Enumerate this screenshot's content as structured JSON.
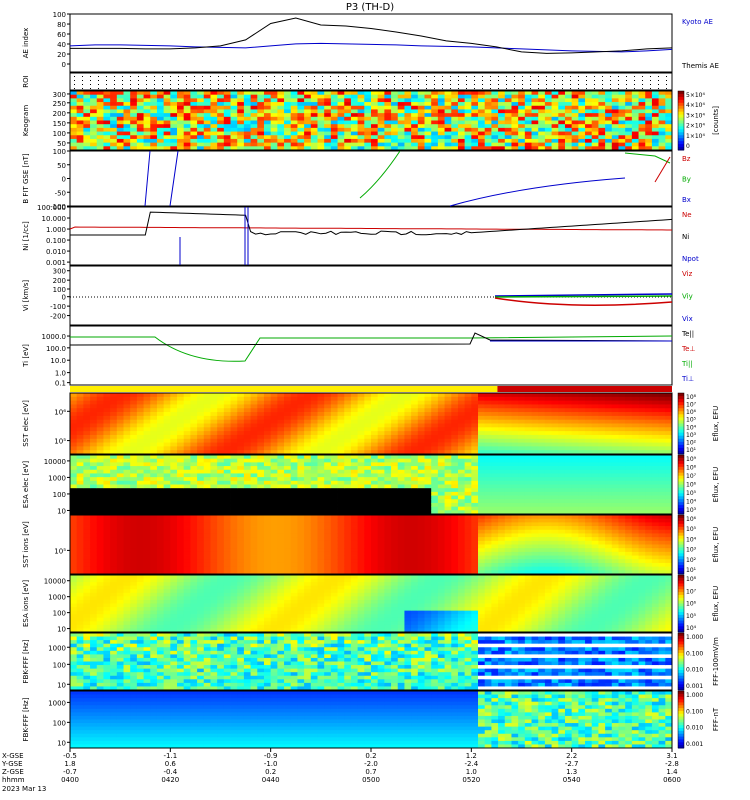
{
  "chart_data": {
    "type": "stacked-timeseries",
    "title": "P3 (TH-D)",
    "date_label": "2023 Mar 13",
    "x_axis": {
      "row_labels": [
        "X-GSE",
        "Y-GSE",
        "Z-GSE",
        "hhmm"
      ],
      "ticks": [
        {
          "time": "0400",
          "x": "-0.5",
          "y": "1.8",
          "z": "-0.7"
        },
        {
          "time": "0420",
          "x": "-1.1",
          "y": "0.6",
          "z": "-0.4"
        },
        {
          "time": "0440",
          "x": "-0.9",
          "y": "-1.0",
          "z": "0.2"
        },
        {
          "time": "0500",
          "x": "0.2",
          "y": "-2.0",
          "z": "0.7"
        },
        {
          "time": "0520",
          "x": "1.2",
          "y": "-2.4",
          "z": "1.0"
        },
        {
          "time": "0540",
          "x": "2.2",
          "y": "-2.7",
          "z": "1.3"
        },
        {
          "time": "0600",
          "x": "3.1",
          "y": "-2.8",
          "z": "1.4"
        }
      ]
    },
    "panels": [
      {
        "id": "ae",
        "ylabel": "AE index",
        "ticks": [
          "100",
          "80",
          "60",
          "40",
          "20",
          "0"
        ],
        "legend": [
          {
            "text": "Kyoto AE",
            "color": "#0000cc"
          },
          {
            "text": "Themis AE",
            "color": "#000000"
          }
        ],
        "series": [
          {
            "name": "Kyoto AE",
            "color": "#0000cc",
            "values": [
              40,
              42,
              42,
              41,
              40,
              38,
              37,
              36,
              40,
              44,
              45,
              44,
              43,
              42,
              40,
              39,
              38,
              36,
              34,
              32,
              30,
              29,
              28,
              30,
              33
            ]
          },
          {
            "name": "Themis AE",
            "color": "#000000",
            "values": [
              35,
              35,
              35,
              34,
              34,
              36,
              40,
              52,
              85,
              96,
              82,
              80,
              75,
              68,
              60,
              50,
              45,
              38,
              28,
              25,
              26,
              28,
              30,
              34,
              36
            ]
          }
        ]
      },
      {
        "id": "roi",
        "ylabel": "ROI",
        "ticks": []
      },
      {
        "id": "keogram",
        "ylabel": "Keogram",
        "ticks": [
          "300",
          "250",
          "200",
          "150",
          "100",
          "50"
        ],
        "colorbar": {
          "ticks": [
            "5×10⁴",
            "4×10⁴",
            "3×10⁴",
            "2×10⁴",
            "1×10⁴",
            "0"
          ],
          "unit": "[counts]"
        }
      },
      {
        "id": "bfit",
        "ylabel": "B FIT GSE [nT]",
        "ticks": [
          "100",
          "50",
          "0",
          "-50",
          "-100"
        ],
        "legend": [
          {
            "text": "Bz",
            "color": "#cc0000"
          },
          {
            "text": "By",
            "color": "#00aa00"
          },
          {
            "text": "Bx",
            "color": "#0000cc"
          }
        ]
      },
      {
        "id": "ni",
        "ylabel": "Ni [1/cc]",
        "ticks": [
          "100.000",
          "10.000",
          "1.000",
          "0.100",
          "0.010",
          "0.001"
        ],
        "legend": [
          {
            "text": "Ne",
            "color": "#cc0000"
          },
          {
            "text": "Ni",
            "color": "#000000"
          },
          {
            "text": "Npot",
            "color": "#0000cc"
          }
        ]
      },
      {
        "id": "vi",
        "ylabel": "Vi [km/s]",
        "ticks": [
          "300",
          "200",
          "100",
          "0",
          "-100",
          "-200"
        ],
        "legend": [
          {
            "text": "Viz",
            "color": "#cc0000"
          },
          {
            "text": "Viy",
            "color": "#00aa00"
          },
          {
            "text": "Vix",
            "color": "#0000cc"
          }
        ]
      },
      {
        "id": "ti",
        "ylabel": "Ti [eV]",
        "ticks": [
          "1000.0",
          "100.0",
          "10.0",
          "1.0",
          "0.1"
        ],
        "legend": [
          {
            "text": "Te||",
            "color": "#000000"
          },
          {
            "text": "Te⊥",
            "color": "#cc0000"
          },
          {
            "text": "Ti||",
            "color": "#00aa00"
          },
          {
            "text": "Ti⊥",
            "color": "#0000cc"
          }
        ]
      },
      {
        "id": "sst_e",
        "ylabel": "SST elec [eV]",
        "ticks": [
          "10⁶",
          "10⁵"
        ],
        "colorbar": {
          "ticks": [
            "10⁸",
            "10⁷",
            "10⁶",
            "10⁵",
            "10⁴",
            "10³",
            "10²",
            "10¹"
          ],
          "unit": "Eflux, EFU"
        }
      },
      {
        "id": "esa_e",
        "ylabel": "ESA elec [eV]",
        "ticks": [
          "10000",
          "1000",
          "100",
          "10"
        ],
        "colorbar": {
          "ticks": [
            "10⁹",
            "10⁸",
            "10⁷",
            "10⁶",
            "10⁵",
            "10⁴",
            "10³"
          ],
          "unit": "Eflux, EFU"
        }
      },
      {
        "id": "sst_i",
        "ylabel": "SST ions [eV]",
        "ticks": [
          "10⁵"
        ],
        "colorbar": {
          "ticks": [
            "10⁶",
            "10⁵",
            "10⁴",
            "10³",
            "10²",
            "10¹"
          ],
          "unit": "Eflux, EFU"
        }
      },
      {
        "id": "esa_i",
        "ylabel": "ESA ions [eV]",
        "ticks": [
          "10000",
          "1000",
          "100",
          "10"
        ],
        "colorbar": {
          "ticks": [
            "10⁸",
            "10⁷",
            "10⁶",
            "10⁵",
            "10⁴"
          ],
          "unit": "Eflux, EFU"
        }
      },
      {
        "id": "fbk_e",
        "ylabel": "FBK-FFF [Hz]",
        "ticks": [
          "1000",
          "100",
          "10"
        ],
        "colorbar": {
          "ticks": [
            "1.000",
            "0.100",
            "0.010",
            "0.001"
          ],
          "unit": "FFF-100mV/m"
        }
      },
      {
        "id": "fbk_b",
        "ylabel": "FBK-FFF [Hz]",
        "ticks": [
          "1000",
          "100",
          "10"
        ],
        "colorbar": {
          "ticks": [
            "1.000",
            "0.100",
            "0.010",
            "0.001"
          ],
          "unit": "FFF-nT"
        }
      }
    ]
  }
}
